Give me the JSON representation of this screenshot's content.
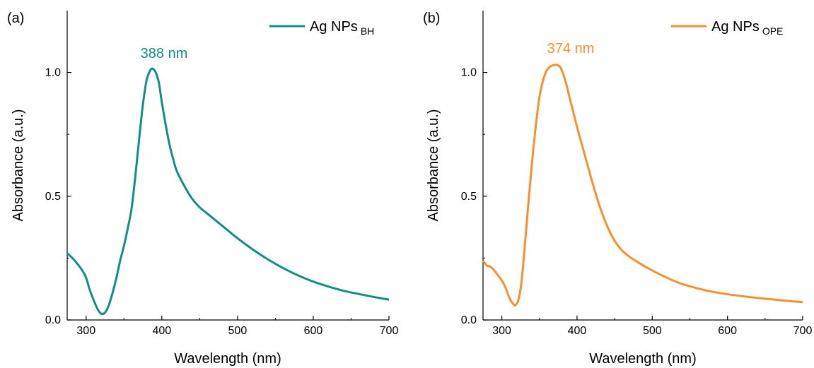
{
  "chart_data": [
    {
      "type": "line",
      "panel_label": "(a)",
      "xlabel": "Wavelength (nm)",
      "ylabel": "Absorbance (a.u.)",
      "xlim": [
        275,
        700
      ],
      "ylim": [
        0,
        1.25
      ],
      "xticks": [
        300,
        400,
        500,
        600,
        700
      ],
      "yticks": [
        0.0,
        0.5,
        1.0
      ],
      "ytick_labels": [
        "0.0",
        "0.5",
        "1.0"
      ],
      "grid": false,
      "legend_position": "top-right",
      "annotation": "388 nm",
      "series": [
        {
          "name": "Ag NPs",
          "name_subscript": "BH",
          "color": "#138d87",
          "x": [
            275,
            285,
            295,
            300,
            305,
            310,
            315,
            320,
            325,
            330,
            335,
            340,
            345,
            350,
            355,
            360,
            365,
            370,
            375,
            380,
            385,
            388,
            392,
            396,
            400,
            405,
            410,
            415,
            420,
            430,
            440,
            450,
            460,
            470,
            480,
            500,
            520,
            540,
            560,
            580,
            600,
            620,
            640,
            660,
            680,
            700
          ],
          "y": [
            0.27,
            0.24,
            0.2,
            0.17,
            0.12,
            0.08,
            0.045,
            0.025,
            0.03,
            0.06,
            0.11,
            0.17,
            0.24,
            0.3,
            0.37,
            0.45,
            0.58,
            0.73,
            0.87,
            0.97,
            1.01,
            1.015,
            1.0,
            0.96,
            0.88,
            0.79,
            0.71,
            0.65,
            0.6,
            0.54,
            0.49,
            0.455,
            0.43,
            0.405,
            0.38,
            0.33,
            0.285,
            0.245,
            0.21,
            0.18,
            0.155,
            0.135,
            0.118,
            0.105,
            0.093,
            0.082
          ]
        }
      ]
    },
    {
      "type": "line",
      "panel_label": "(b)",
      "xlabel": "Wavelength (nm)",
      "ylabel": "Absorbance (a.u.)",
      "xlim": [
        275,
        700
      ],
      "ylim": [
        0,
        1.25
      ],
      "xticks": [
        300,
        400,
        500,
        600,
        700
      ],
      "yticks": [
        0.0,
        0.5,
        1.0
      ],
      "ytick_labels": [
        "0.0",
        "0.5",
        "1.0"
      ],
      "grid": false,
      "legend_position": "top-right",
      "annotation": "374 nm",
      "series": [
        {
          "name": "Ag NPs",
          "name_subscript": "OPE",
          "color": "#f5902d",
          "x": [
            275,
            280,
            285,
            290,
            295,
            300,
            305,
            310,
            315,
            318,
            322,
            326,
            330,
            335,
            340,
            345,
            350,
            355,
            360,
            365,
            370,
            374,
            378,
            382,
            386,
            390,
            395,
            400,
            410,
            420,
            430,
            440,
            450,
            460,
            470,
            480,
            500,
            520,
            540,
            560,
            580,
            600,
            620,
            640,
            660,
            680,
            700
          ],
          "y": [
            0.24,
            0.22,
            0.215,
            0.2,
            0.18,
            0.16,
            0.13,
            0.09,
            0.065,
            0.06,
            0.08,
            0.15,
            0.28,
            0.46,
            0.63,
            0.78,
            0.9,
            0.97,
            1.01,
            1.025,
            1.03,
            1.03,
            1.02,
            0.99,
            0.95,
            0.9,
            0.84,
            0.78,
            0.67,
            0.56,
            0.46,
            0.38,
            0.32,
            0.28,
            0.255,
            0.235,
            0.2,
            0.17,
            0.145,
            0.128,
            0.114,
            0.104,
            0.096,
            0.089,
            0.083,
            0.077,
            0.072
          ]
        }
      ]
    }
  ]
}
